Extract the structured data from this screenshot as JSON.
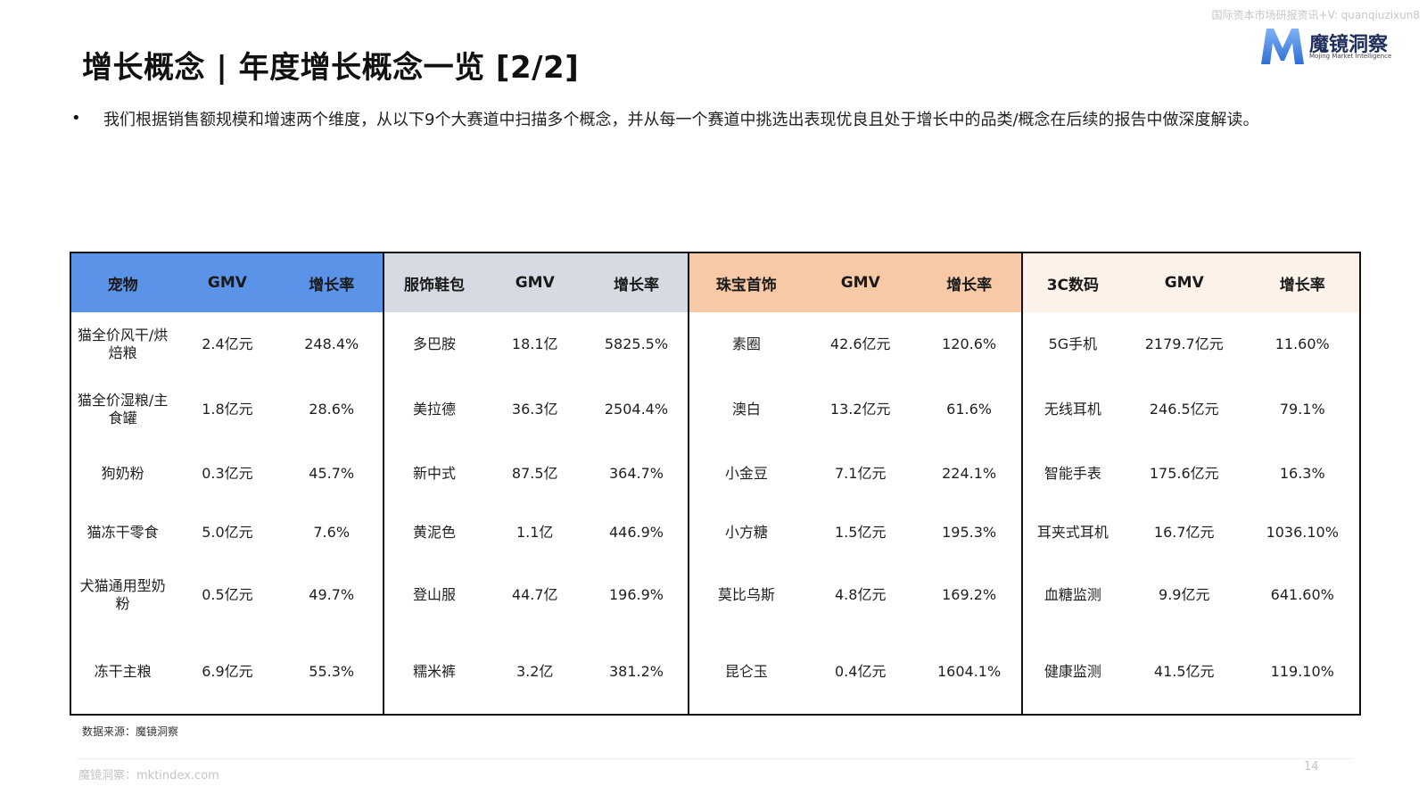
{
  "watermark": "国际资本市场研报资讯+V: quanqiuzixun8",
  "logo": {
    "brand": "魔镜洞察",
    "sub": "Mojing Market Intelligence",
    "mark_color": "#2f6fd6"
  },
  "title": "增长概念 | 年度增长概念一览 [2/2]",
  "bullet": "我们根据销售额规模和增速两个维度，从以下9个大赛道中扫描多个概念，并从每一个赛道中挑选出表现优良且处于增长中的品类/概念在后续的报告中做深度解读。",
  "table": {
    "headers": [
      "宠物",
      "GMV",
      "增长率",
      "服饰鞋包",
      "GMV",
      "增长率",
      "珠宝首饰",
      "GMV",
      "增长率",
      "3C数码",
      "GMV",
      "增长率"
    ],
    "header_colors": [
      "#5b93e8",
      "#d6dbe3",
      "#f8c9a6",
      "#fdf2ea"
    ],
    "rows": [
      [
        "猫全价风干/烘焙粮",
        "2.4亿元",
        "248.4%",
        "多巴胺",
        "18.1亿",
        "5825.5%",
        "素圈",
        "42.6亿元",
        "120.6%",
        "5G手机",
        "2179.7亿元",
        "11.60%"
      ],
      [
        "猫全价湿粮/主食罐",
        "1.8亿元",
        "28.6%",
        "美拉德",
        "36.3亿",
        "2504.4%",
        "澳白",
        "13.2亿元",
        "61.6%",
        "无线耳机",
        "246.5亿元",
        "79.1%"
      ],
      [
        "狗奶粉",
        "0.3亿元",
        "45.7%",
        "新中式",
        "87.5亿",
        "364.7%",
        "小金豆",
        "7.1亿元",
        "224.1%",
        "智能手表",
        "175.6亿元",
        "16.3%"
      ],
      [
        "猫冻干零食",
        "5.0亿元",
        "7.6%",
        "黄泥色",
        "1.1亿",
        "446.9%",
        "小方糖",
        "1.5亿元",
        "195.3%",
        "耳夹式耳机",
        "16.7亿元",
        "1036.10%"
      ],
      [
        "犬猫通用型奶粉",
        "0.5亿元",
        "49.7%",
        "登山服",
        "44.7亿",
        "196.9%",
        "莫比乌斯",
        "4.8亿元",
        "169.2%",
        "血糖监测",
        "9.9亿元",
        "641.60%"
      ],
      [
        "冻干主粮",
        "6.9亿元",
        "55.3%",
        "糯米裤",
        "3.2亿",
        "381.2%",
        "昆仑玉",
        "0.4亿元",
        "1604.1%",
        "健康监测",
        "41.5亿元",
        "119.10%"
      ]
    ]
  },
  "source": "数据来源：魔镜洞察",
  "footer": "魔镜洞察：mktindex.com",
  "page_number": "14"
}
